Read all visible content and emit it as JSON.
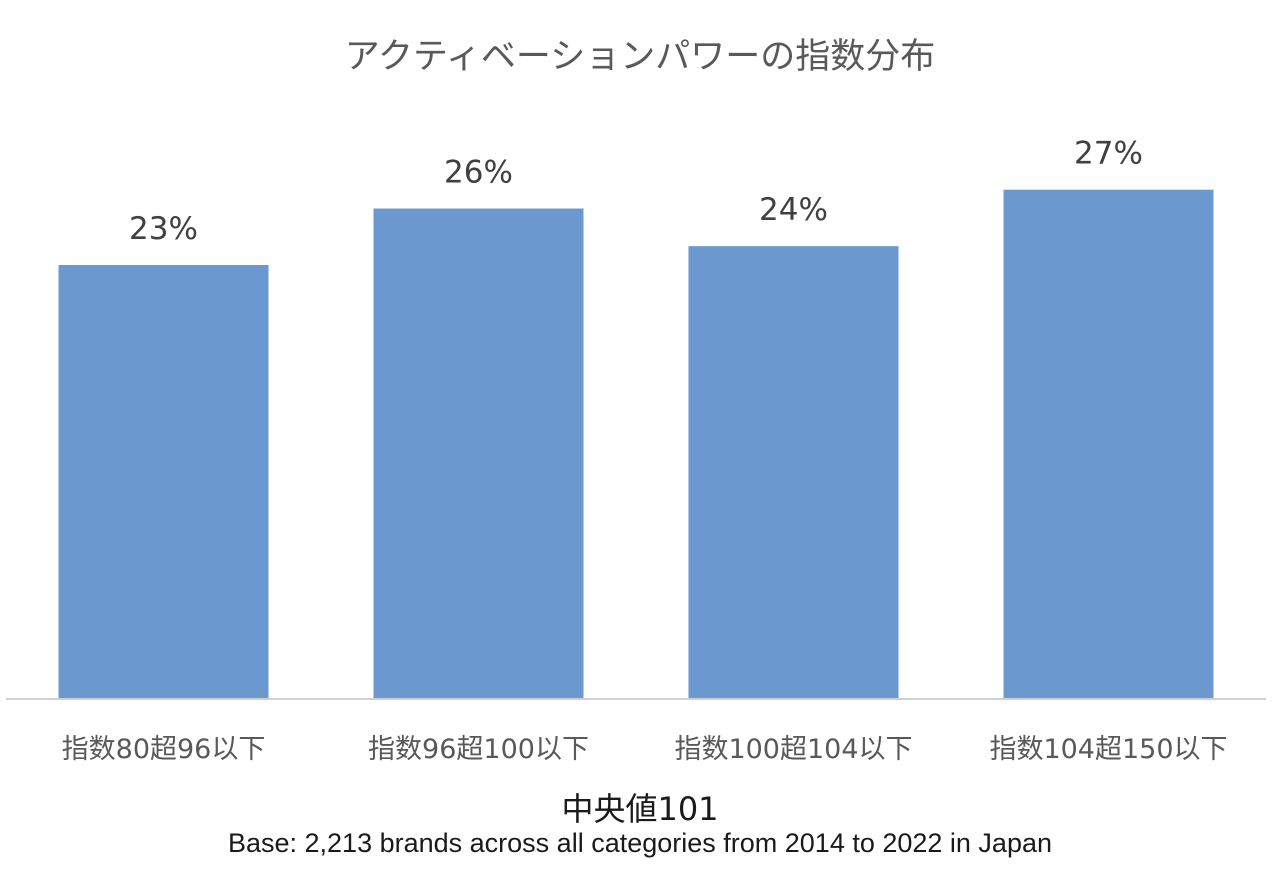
{
  "chart_data": {
    "type": "bar",
    "title": "アクティベーションパワーの指数分布",
    "categories": [
      "指数80超96以下",
      "指数96超100以下",
      "指数100超104以下",
      "指数104超150以下"
    ],
    "values": [
      23,
      26,
      24,
      27
    ],
    "value_labels": [
      "23%",
      "26%",
      "24%",
      "27%"
    ],
    "unit": "%",
    "ylim": [
      0,
      30
    ],
    "grid": false,
    "legend": "none",
    "bar_color": "#6A98CF",
    "axis_color": "#D0D0D0"
  },
  "notes": {
    "median": "中央値101",
    "base": "Base: 2,213 brands across all categories from 2014 to 2022 in Japan"
  }
}
